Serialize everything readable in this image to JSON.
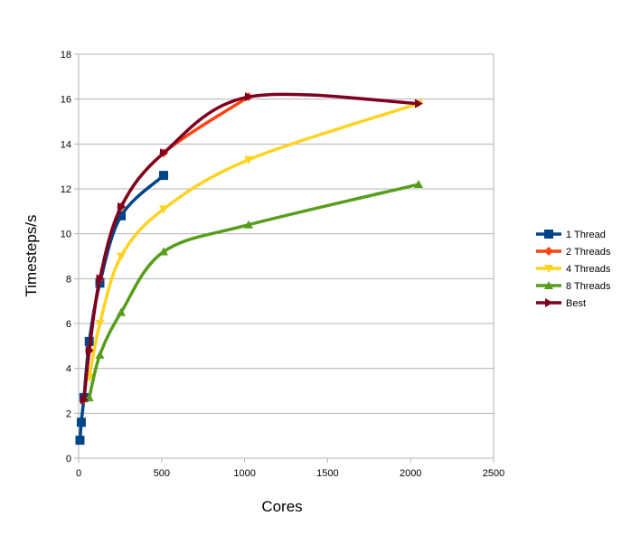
{
  "chart_data": {
    "type": "line",
    "xlabel": "Cores",
    "ylabel": "Timesteps/s",
    "xlim": [
      0,
      2500
    ],
    "ylim": [
      0,
      18
    ],
    "xticks": [
      "0",
      "500",
      "1000",
      "1500",
      "2000",
      "2500"
    ],
    "yticks": [
      "0",
      "2",
      "4",
      "6",
      "8",
      "10",
      "12",
      "14",
      "16",
      "18"
    ],
    "grid": "horizontal",
    "legend_position": "right",
    "series": [
      {
        "name": "1 Thread",
        "color": "#004586",
        "marker": "square",
        "x": [
          8,
          16,
          32,
          64,
          128,
          256,
          512
        ],
        "y": [
          0.8,
          1.6,
          2.7,
          5.2,
          7.8,
          10.8,
          12.6
        ]
      },
      {
        "name": "2 Threads",
        "color": "#ff420e",
        "marker": "diamond",
        "x": [
          32,
          64,
          128,
          256,
          512,
          1024
        ],
        "y": [
          2.6,
          4.8,
          8.0,
          11.2,
          13.6,
          16.1
        ]
      },
      {
        "name": "4 Threads",
        "color": "#ffd320",
        "marker": "triangle-down",
        "x": [
          64,
          128,
          256,
          512,
          1024,
          2048
        ],
        "y": [
          3.6,
          6.0,
          9.0,
          11.1,
          13.3,
          15.8
        ]
      },
      {
        "name": "8 Threads",
        "color": "#579d1c",
        "marker": "triangle-up",
        "x": [
          64,
          128,
          256,
          512,
          1024,
          2048
        ],
        "y": [
          2.7,
          4.6,
          6.5,
          9.2,
          10.4,
          12.2
        ]
      },
      {
        "name": "Best",
        "color": "#7e0021",
        "marker": "triangle-right",
        "x": [
          32,
          64,
          128,
          256,
          512,
          1024,
          2048
        ],
        "y": [
          2.6,
          4.8,
          8.0,
          11.2,
          13.6,
          16.1,
          15.8
        ]
      }
    ]
  }
}
